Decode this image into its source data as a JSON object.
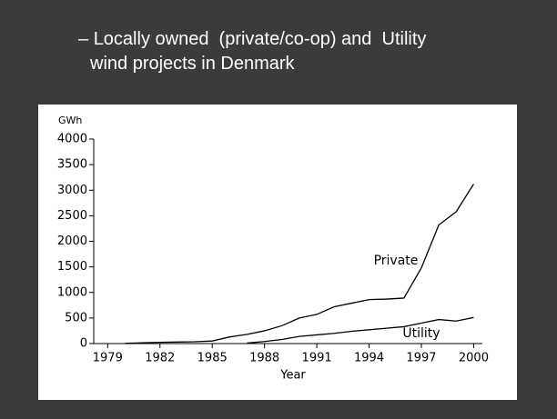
{
  "slide": {
    "bullet": "–",
    "lines": [
      "Locally owned  (private/co-op) and  Utility",
      "wind projects in Denmark"
    ]
  },
  "chart_data": {
    "type": "line",
    "y_label": "GWh",
    "x_label": "Year",
    "x": [
      1980,
      1981,
      1982,
      1983,
      1984,
      1985,
      1986,
      1987,
      1988,
      1989,
      1990,
      1991,
      1992,
      1993,
      1994,
      1995,
      1996,
      1997,
      1998,
      1999,
      2000
    ],
    "series": [
      {
        "name": "Private",
        "color": "#000000",
        "values": [
          5,
          15,
          25,
          30,
          35,
          50,
          130,
          180,
          250,
          350,
          500,
          570,
          720,
          790,
          860,
          870,
          890,
          1480,
          2320,
          2580,
          3120
        ]
      },
      {
        "name": "Utility",
        "color": "#000000",
        "values": [
          null,
          null,
          null,
          null,
          null,
          null,
          null,
          10,
          40,
          80,
          140,
          170,
          200,
          240,
          270,
          300,
          330,
          400,
          470,
          440,
          510
        ]
      }
    ],
    "xlim": [
      1978.2,
      2000.5
    ],
    "xticks": [
      1979,
      1982,
      1985,
      1988,
      1991,
      1994,
      1997,
      2000
    ],
    "ylim": [
      0,
      4000
    ],
    "yticks": [
      0,
      500,
      1000,
      1500,
      2000,
      2500,
      3000,
      3500,
      4000
    ],
    "grid": false
  }
}
